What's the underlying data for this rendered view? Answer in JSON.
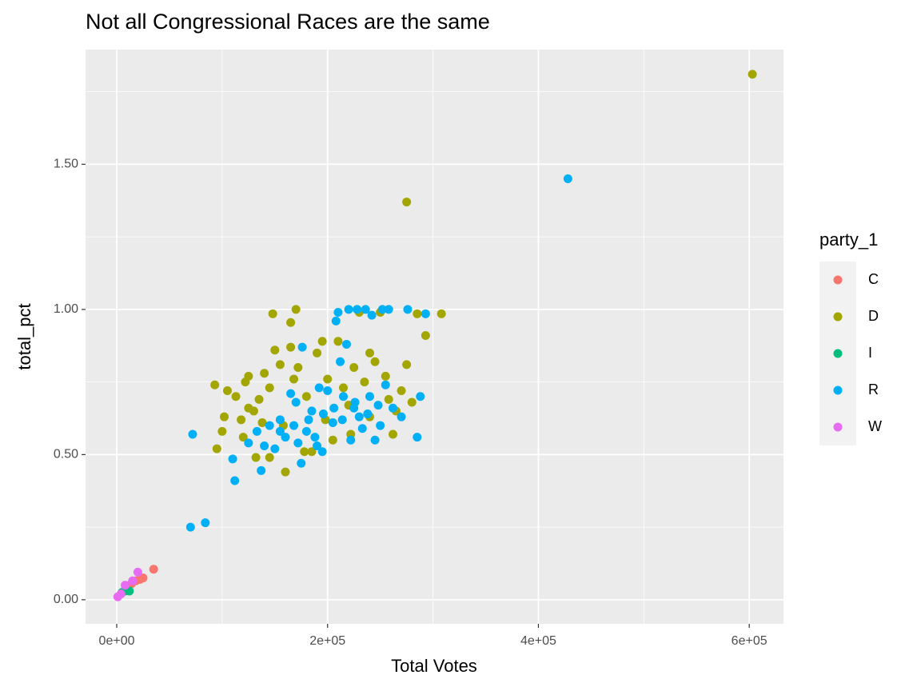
{
  "chart_data": {
    "type": "scatter",
    "title": "Not all Congressional Races are the same",
    "x_label": "Total Votes",
    "y_label": "total_pct",
    "legend_title": "party_1",
    "legend": "right",
    "grid": true,
    "xlim": [
      -29600,
      632500
    ],
    "ylim": [
      -0.083,
      1.895
    ],
    "xticks": [
      {
        "value": 0,
        "label": "0e+00"
      },
      {
        "value": 200000,
        "label": "2e+05"
      },
      {
        "value": 400000,
        "label": "4e+05"
      },
      {
        "value": 600000,
        "label": "6e+05"
      }
    ],
    "yticks": [
      {
        "value": 0,
        "label": "0.00"
      },
      {
        "value": 0.5,
        "label": "0.50"
      },
      {
        "value": 1,
        "label": "1.00"
      },
      {
        "value": 1.5,
        "label": "1.50"
      }
    ],
    "xminor": [
      100000,
      300000,
      500000
    ],
    "yminor": [
      0.25,
      0.75,
      1.25,
      1.75
    ],
    "series": [
      {
        "name": "C",
        "color": "#F8766D",
        "x": [
          35000,
          22000,
          18000,
          14000,
          10000,
          25000
        ],
        "y": [
          0.105,
          0.07,
          0.065,
          0.055,
          0.045,
          0.075
        ]
      },
      {
        "name": "D",
        "color": "#A3A500",
        "x": [
          603000,
          275000,
          308000,
          293000,
          275000,
          262000,
          170000,
          148000,
          165000,
          93000,
          95000,
          100000,
          105000,
          113000,
          118000,
          122000,
          125000,
          130000,
          135000,
          140000,
          145000,
          150000,
          155000,
          160000,
          165000,
          168000,
          172000,
          180000,
          185000,
          190000,
          195000,
          200000,
          205000,
          210000,
          215000,
          220000,
          225000,
          230000,
          235000,
          240000,
          245000,
          250000,
          255000,
          258000,
          265000,
          270000,
          280000,
          285000,
          120000,
          132000,
          145000,
          178000,
          198000,
          222000,
          240000,
          102000,
          125000,
          138000,
          158000
        ],
        "y": [
          1.81,
          1.37,
          0.985,
          0.91,
          0.81,
          0.57,
          1.0,
          0.985,
          0.955,
          0.74,
          0.52,
          0.58,
          0.72,
          0.7,
          0.62,
          0.75,
          0.77,
          0.65,
          0.69,
          0.78,
          0.73,
          0.86,
          0.81,
          0.44,
          0.87,
          0.76,
          0.8,
          0.7,
          0.51,
          0.85,
          0.89,
          0.76,
          0.55,
          0.89,
          0.73,
          0.67,
          0.8,
          0.99,
          0.75,
          0.85,
          0.82,
          0.99,
          0.77,
          0.69,
          0.65,
          0.72,
          0.68,
          0.985,
          0.56,
          0.49,
          0.49,
          0.51,
          0.62,
          0.57,
          0.63,
          0.63,
          0.66,
          0.61,
          0.6
        ]
      },
      {
        "name": "I",
        "color": "#00BF7D",
        "x": [
          8000,
          12000,
          5000
        ],
        "y": [
          0.03,
          0.03,
          0.025
        ]
      },
      {
        "name": "R",
        "color": "#00B0F6",
        "x": [
          428000,
          72000,
          70000,
          84000,
          110000,
          112000,
          125000,
          133000,
          137000,
          140000,
          145000,
          150000,
          155000,
          160000,
          165000,
          170000,
          175000,
          176000,
          180000,
          185000,
          190000,
          192000,
          195000,
          200000,
          205000,
          208000,
          210000,
          212000,
          215000,
          218000,
          220000,
          222000,
          225000,
          228000,
          230000,
          233000,
          236000,
          240000,
          242000,
          245000,
          248000,
          252000,
          255000,
          258000,
          262000,
          270000,
          276000,
          285000,
          288000,
          293000,
          155000,
          168000,
          182000,
          196000,
          206000,
          214000,
          226000,
          238000,
          250000,
          188000,
          172000
        ],
        "y": [
          1.45,
          0.57,
          0.25,
          0.265,
          0.485,
          0.41,
          0.54,
          0.58,
          0.445,
          0.53,
          0.6,
          0.52,
          0.62,
          0.56,
          0.71,
          0.68,
          0.47,
          0.87,
          0.58,
          0.65,
          0.53,
          0.73,
          0.51,
          0.72,
          0.61,
          0.96,
          0.99,
          0.82,
          0.7,
          0.88,
          1.0,
          0.55,
          0.66,
          1.0,
          0.63,
          0.59,
          1.0,
          0.7,
          0.98,
          0.55,
          0.67,
          1.0,
          0.74,
          1.0,
          0.66,
          0.63,
          1.0,
          0.56,
          0.7,
          0.985,
          0.58,
          0.6,
          0.62,
          0.64,
          0.66,
          0.62,
          0.68,
          0.64,
          0.6,
          0.56,
          0.54
        ]
      },
      {
        "name": "W",
        "color": "#E76BF3",
        "x": [
          1000,
          20000,
          8000,
          15000,
          4000
        ],
        "y": [
          0.01,
          0.095,
          0.05,
          0.065,
          0.02
        ]
      }
    ]
  }
}
